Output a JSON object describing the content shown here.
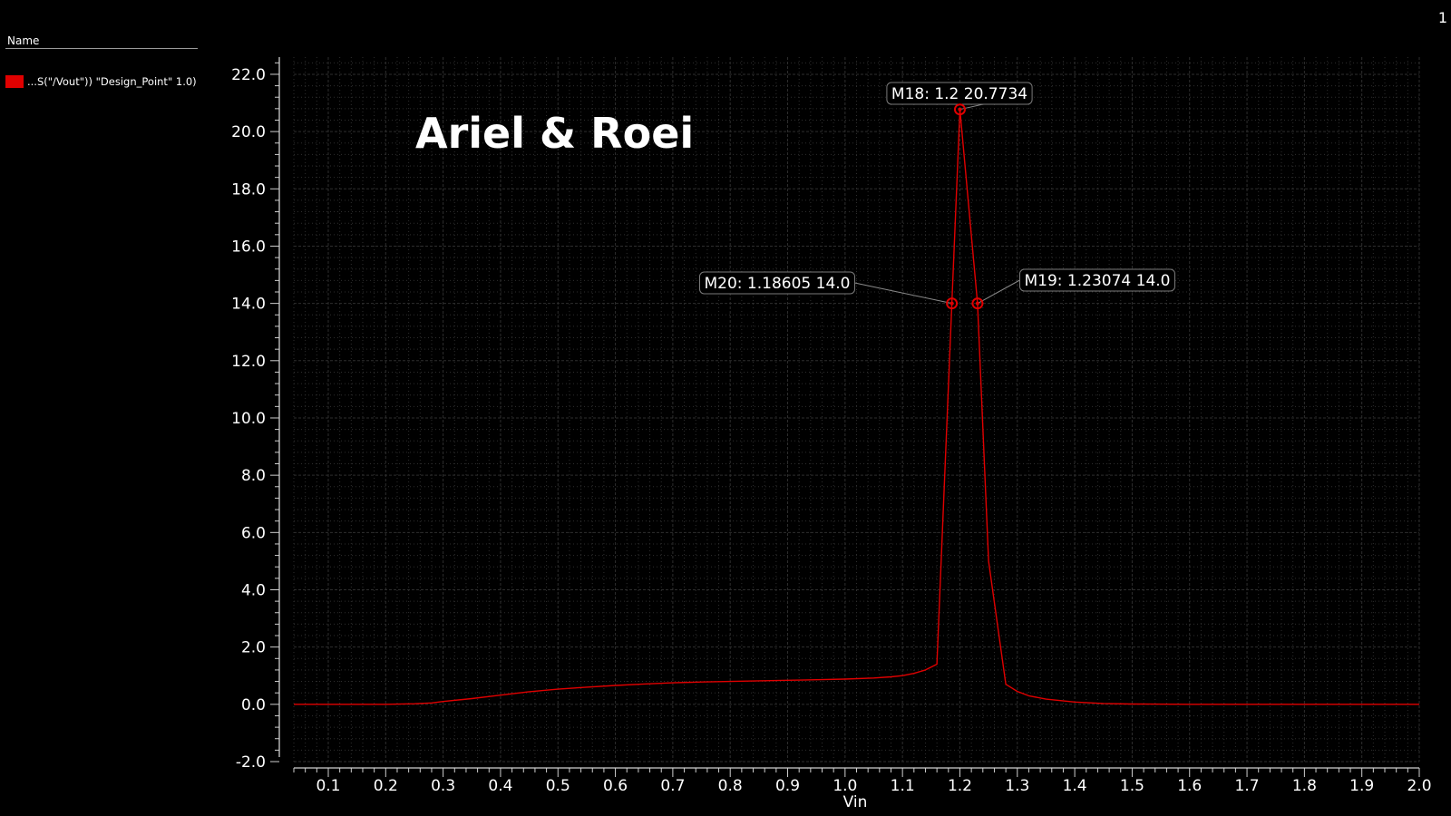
{
  "page_number": "1",
  "legend": {
    "header": "Name",
    "entries": [
      {
        "label": "...S(\"/Vout\")) \"Design_Point\" 1.0)",
        "color": "#e00000"
      }
    ]
  },
  "chart_data": {
    "type": "line",
    "title": "",
    "watermark": "Ariel & Roei",
    "xlabel": "Vin",
    "ylabel": "",
    "xlim": [
      0.04,
      2.0
    ],
    "ylim": [
      -2.0,
      22.6
    ],
    "xticks": [
      0.1,
      0.2,
      0.3,
      0.4,
      0.5,
      0.6,
      0.7,
      0.8,
      0.9,
      1.0,
      1.1,
      1.2,
      1.3,
      1.4,
      1.5,
      1.6,
      1.7,
      1.8,
      1.9,
      2.0
    ],
    "xtick_labels": [
      "0.1",
      "0.2",
      "0.3",
      "0.4",
      "0.5",
      "0.6",
      "0.7",
      "0.8",
      "0.9",
      "1.0",
      "1.1",
      "1.2",
      "1.3",
      "1.4",
      "1.5",
      "1.6",
      "1.7",
      "1.8",
      "1.9",
      "2.0"
    ],
    "yticks": [
      -2,
      0,
      2,
      4,
      6,
      8,
      10,
      12,
      14,
      16,
      18,
      20,
      22
    ],
    "ytick_labels": [
      "-2.0",
      "0.0",
      "2.0",
      "4.0",
      "6.0",
      "8.0",
      "10.0",
      "12.0",
      "14.0",
      "16.0",
      "18.0",
      "20.0",
      "22.0"
    ],
    "grid": true,
    "background": "#000000",
    "grid_color": "#2e2e2e",
    "series": [
      {
        "color": "#e00000",
        "x": [
          0.04,
          0.1,
          0.2,
          0.25,
          0.28,
          0.3,
          0.35,
          0.4,
          0.45,
          0.5,
          0.55,
          0.6,
          0.65,
          0.7,
          0.75,
          0.8,
          0.85,
          0.9,
          0.95,
          1.0,
          1.05,
          1.08,
          1.1,
          1.12,
          1.14,
          1.16,
          1.186,
          1.2,
          1.2307,
          1.25,
          1.28,
          1.3,
          1.32,
          1.35,
          1.4,
          1.45,
          1.5,
          1.6,
          1.8,
          2.0
        ],
        "y": [
          0.0,
          0.0,
          0.0,
          0.02,
          0.05,
          0.1,
          0.2,
          0.32,
          0.44,
          0.53,
          0.6,
          0.66,
          0.71,
          0.75,
          0.78,
          0.8,
          0.82,
          0.84,
          0.86,
          0.88,
          0.92,
          0.96,
          1.0,
          1.08,
          1.2,
          1.4,
          14.0,
          20.7734,
          14.0,
          5.0,
          0.7,
          0.45,
          0.3,
          0.18,
          0.08,
          0.03,
          0.01,
          0.0,
          0.0,
          0.0
        ]
      }
    ],
    "markers": [
      {
        "label": "M18: 1.2 20.7734",
        "x": 1.2,
        "y": 20.7734
      },
      {
        "label": "M19: 1.23074 14.0",
        "x": 1.23074,
        "y": 14.0
      },
      {
        "label": "M20: 1.18605 14.0",
        "x": 1.18605,
        "y": 14.0
      }
    ]
  }
}
